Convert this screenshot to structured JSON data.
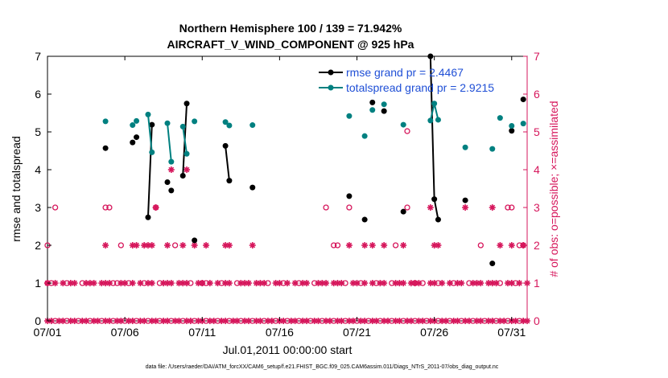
{
  "chart_data": {
    "type": "line",
    "title_line1": "Northern Hemisphere 100 / 139 = 71.942%",
    "title_line2": "AIRCRAFT_V_WIND_COMPONENT @ 925 hPa",
    "xlabel": "Jul.01,2011 00:00:00 start",
    "ylabel_left": "rmse and totalspread",
    "ylabel_right": "# of obs: o=possible; ×=assimilated",
    "footer": "data file: /Users/raeder/DAI/ATM_forcXX/CAM6_setup/f.e21.FHIST_BGC.f09_025.CAM6assim.011/Diags_NTrS_2011-07/obs_diag_output.nc",
    "xlim": [
      1,
      32
    ],
    "ylim_left": [
      0,
      7
    ],
    "ylim_right": [
      0,
      7
    ],
    "x_ticks": [
      1,
      6,
      11,
      16,
      21,
      26,
      31
    ],
    "x_tick_labels": [
      "07/01",
      "07/06",
      "07/11",
      "07/16",
      "07/21",
      "07/26",
      "07/31"
    ],
    "y_ticks_left": [
      "0",
      "1",
      "2",
      "3",
      "4",
      "5",
      "6",
      "7"
    ],
    "y_ticks_right": [
      "0",
      "1",
      "2",
      "3",
      "4",
      "5",
      "6",
      "7"
    ],
    "colors": {
      "rmse": "#000000",
      "spread": "#008080",
      "obs": "#d6175c",
      "legend_text": "#1f4fd6"
    },
    "legend": [
      {
        "name": "rmse grand pr = 2.4467",
        "series": "rmse"
      },
      {
        "name": "totalspread grand pr = 2.9215",
        "series": "spread"
      }
    ],
    "series": [
      {
        "name": "rmse",
        "segments": [
          [
            [
              4.75,
              4.57
            ]
          ],
          [
            [
              6.5,
              4.72
            ]
          ],
          [
            [
              6.75,
              4.86
            ]
          ],
          [
            [
              7.5,
              2.74
            ],
            [
              7.75,
              5.19
            ]
          ],
          [
            [
              8.75,
              3.67
            ]
          ],
          [
            [
              9.0,
              3.45
            ]
          ],
          [
            [
              9.75,
              3.84
            ],
            [
              10.0,
              5.75
            ]
          ],
          [
            [
              10.5,
              2.13
            ]
          ],
          [
            [
              12.5,
              4.63
            ],
            [
              12.75,
              3.71
            ]
          ],
          [
            [
              14.25,
              3.53
            ]
          ],
          [
            [
              20.5,
              3.3
            ]
          ],
          [
            [
              21.5,
              2.68
            ]
          ],
          [
            [
              22.0,
              5.78
            ]
          ],
          [
            [
              22.75,
              5.55
            ]
          ],
          [
            [
              24.0,
              2.89
            ]
          ],
          [
            [
              25.75,
              7.0
            ],
            [
              26.0,
              3.22
            ],
            [
              26.25,
              2.68
            ]
          ],
          [
            [
              28.0,
              3.19
            ]
          ],
          [
            [
              29.75,
              1.52
            ]
          ],
          [
            [
              31.0,
              5.03
            ]
          ],
          [
            [
              31.75,
              5.86
            ]
          ]
        ]
      },
      {
        "name": "totalspread",
        "segments": [
          [
            [
              4.75,
              5.28
            ]
          ],
          [
            [
              6.5,
              5.18
            ]
          ],
          [
            [
              6.75,
              5.29
            ]
          ],
          [
            [
              7.5,
              5.46
            ],
            [
              7.75,
              4.46
            ]
          ],
          [
            [
              8.75,
              5.23
            ],
            [
              9.0,
              4.21
            ]
          ],
          [
            [
              9.75,
              5.14
            ],
            [
              10.0,
              4.42
            ]
          ],
          [
            [
              10.5,
              5.28
            ]
          ],
          [
            [
              12.5,
              5.26
            ],
            [
              12.75,
              5.17
            ]
          ],
          [
            [
              14.25,
              5.18
            ]
          ],
          [
            [
              20.5,
              5.42
            ]
          ],
          [
            [
              21.5,
              4.89
            ]
          ],
          [
            [
              22.0,
              5.58
            ]
          ],
          [
            [
              22.75,
              5.73
            ]
          ],
          [
            [
              24.0,
              5.19
            ]
          ],
          [
            [
              25.75,
              5.3
            ],
            [
              26.0,
              5.75
            ],
            [
              26.25,
              5.32
            ]
          ],
          [
            [
              28.0,
              4.59
            ]
          ],
          [
            [
              29.75,
              4.55
            ]
          ],
          [
            [
              30.25,
              5.37
            ]
          ],
          [
            [
              31.0,
              5.16
            ]
          ],
          [
            [
              31.75,
              5.22
            ]
          ]
        ]
      },
      {
        "name": "obs_possible",
        "points": [
          [
            1,
            2
          ],
          [
            1.5,
            3
          ],
          [
            4.75,
            3
          ],
          [
            5.0,
            3
          ],
          [
            5.75,
            2
          ],
          [
            8.0,
            3
          ],
          [
            9.25,
            2
          ],
          [
            19.0,
            3
          ],
          [
            19.5,
            2
          ],
          [
            19.75,
            2
          ],
          [
            20.5,
            3
          ],
          [
            23.5,
            2
          ],
          [
            24.25,
            5.02
          ],
          [
            24.25,
            3
          ],
          [
            24.75,
            1
          ],
          [
            29.0,
            2
          ],
          [
            30.75,
            3
          ],
          [
            31.0,
            3
          ],
          [
            31.5,
            2
          ],
          [
            31.75,
            2
          ],
          [
            1.0,
            1
          ],
          [
            5.5,
            1
          ],
          [
            11.0,
            1
          ]
        ]
      },
      {
        "name": "obs_assimilated",
        "points": [
          [
            4.75,
            2
          ],
          [
            6.5,
            2
          ],
          [
            6.75,
            2
          ],
          [
            7.25,
            2
          ],
          [
            7.5,
            2
          ],
          [
            7.75,
            2
          ],
          [
            8.0,
            3
          ],
          [
            8.75,
            2
          ],
          [
            9.0,
            4
          ],
          [
            9.75,
            2
          ],
          [
            10.0,
            4
          ],
          [
            10.5,
            2
          ],
          [
            11.25,
            2
          ],
          [
            12.5,
            2
          ],
          [
            12.75,
            2
          ],
          [
            14.25,
            2
          ],
          [
            20.5,
            2
          ],
          [
            21.5,
            2
          ],
          [
            22.0,
            2
          ],
          [
            22.75,
            2
          ],
          [
            24.0,
            2
          ],
          [
            25.75,
            3
          ],
          [
            26.0,
            2
          ],
          [
            26.25,
            2
          ],
          [
            28.0,
            3
          ],
          [
            29.75,
            3
          ],
          [
            30.25,
            2
          ],
          [
            31.0,
            2
          ],
          [
            31.75,
            2
          ]
        ]
      }
    ],
    "obs_baseline_note": "dense row of markers at 0 and 1 across the month"
  }
}
